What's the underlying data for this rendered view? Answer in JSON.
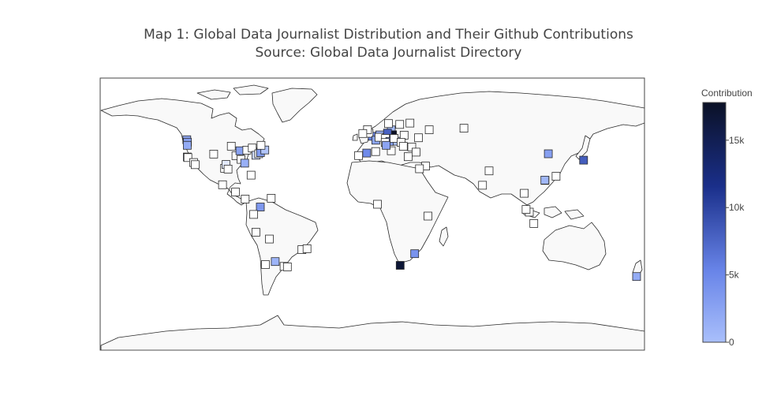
{
  "title": {
    "line1": "Map 1: Global Data Journalist Distribution and Their Github Contributions",
    "line2": "Source: Global Data Journalist Directory"
  },
  "colors": {
    "background": "#ffffff",
    "land": "#f9f9f9",
    "coastline": "#2a2a2a",
    "frame": "#444444",
    "marker_edge": "#2a2a2a",
    "scale_low": "#a9bffb",
    "scale_mid": "#6884e8",
    "scale_high": "#1a2f8a",
    "scale_max": "#0b1126"
  },
  "colorbar": {
    "title": "Contribution",
    "min": 0,
    "max": 17800,
    "ticks": [
      {
        "value": 0,
        "label": "0"
      },
      {
        "value": 5000,
        "label": "5k"
      },
      {
        "value": 10000,
        "label": "10k"
      },
      {
        "value": 15000,
        "label": "15k"
      }
    ]
  },
  "chart_data": {
    "type": "scatter",
    "projection": "equirectangular",
    "title": "Map 1: Global Data Journalist Distribution and Their Github Contributions",
    "subtitle": "Source: Global Data Journalist Directory",
    "marker": "square",
    "color_by": "Contribution",
    "lon_range": [
      -180,
      180
    ],
    "lat_range": [
      -90,
      90
    ],
    "points": [
      {
        "lon": -122.7,
        "lat": 49.2,
        "value": 2600
      },
      {
        "lon": -122.3,
        "lat": 47.6,
        "value": 3200
      },
      {
        "lon": -122.4,
        "lat": 45.5,
        "value": 2400
      },
      {
        "lon": -122.4,
        "lat": 37.8,
        "value": 1500
      },
      {
        "lon": -122.0,
        "lat": 37.4,
        "value": 0
      },
      {
        "lon": -118.2,
        "lat": 34.1,
        "value": 0
      },
      {
        "lon": -117.2,
        "lat": 32.7,
        "value": 0
      },
      {
        "lon": -104.9,
        "lat": 39.7,
        "value": 0
      },
      {
        "lon": -97.7,
        "lat": 30.3,
        "value": 0
      },
      {
        "lon": -96.8,
        "lat": 32.8,
        "value": 300
      },
      {
        "lon": -95.4,
        "lat": 29.8,
        "value": 0
      },
      {
        "lon": -93.3,
        "lat": 44.9,
        "value": 0
      },
      {
        "lon": -90.2,
        "lat": 38.6,
        "value": 0
      },
      {
        "lon": -87.6,
        "lat": 41.9,
        "value": 3100
      },
      {
        "lon": -86.8,
        "lat": 36.2,
        "value": 0
      },
      {
        "lon": -84.4,
        "lat": 33.7,
        "value": 2000
      },
      {
        "lon": -83.0,
        "lat": 42.3,
        "value": 0
      },
      {
        "lon": -79.4,
        "lat": 43.7,
        "value": 0
      },
      {
        "lon": -77.0,
        "lat": 38.9,
        "value": 500
      },
      {
        "lon": -75.2,
        "lat": 39.9,
        "value": 0
      },
      {
        "lon": -74.0,
        "lat": 40.7,
        "value": 3600
      },
      {
        "lon": -71.1,
        "lat": 42.4,
        "value": 800
      },
      {
        "lon": -73.6,
        "lat": 45.5,
        "value": 0
      },
      {
        "lon": -80.2,
        "lat": 25.8,
        "value": 0
      },
      {
        "lon": -99.1,
        "lat": 19.4,
        "value": 0
      },
      {
        "lon": -90.5,
        "lat": 14.6,
        "value": 0
      },
      {
        "lon": -84.1,
        "lat": 9.9,
        "value": 0
      },
      {
        "lon": -74.1,
        "lat": 4.7,
        "value": 3800
      },
      {
        "lon": -66.9,
        "lat": 10.5,
        "value": 0
      },
      {
        "lon": -78.5,
        "lat": -0.2,
        "value": 0
      },
      {
        "lon": -77.0,
        "lat": -12.0,
        "value": 0
      },
      {
        "lon": -68.1,
        "lat": -16.5,
        "value": 0
      },
      {
        "lon": -70.7,
        "lat": -33.4,
        "value": 0
      },
      {
        "lon": -58.4,
        "lat": -34.6,
        "value": 0
      },
      {
        "lon": -46.6,
        "lat": -23.5,
        "value": 0
      },
      {
        "lon": -43.2,
        "lat": -22.9,
        "value": 0
      },
      {
        "lon": -56.2,
        "lat": -34.9,
        "value": 0
      },
      {
        "lon": -64.2,
        "lat": -31.4,
        "value": 1700
      },
      {
        "lon": -0.1,
        "lat": 51.5,
        "value": 5200
      },
      {
        "lon": -2.2,
        "lat": 53.5,
        "value": 0
      },
      {
        "lon": -3.2,
        "lat": 55.9,
        "value": 0
      },
      {
        "lon": -6.3,
        "lat": 53.3,
        "value": 0
      },
      {
        "lon": 2.3,
        "lat": 48.9,
        "value": 2800
      },
      {
        "lon": 4.9,
        "lat": 52.4,
        "value": 1800
      },
      {
        "lon": 4.4,
        "lat": 50.8,
        "value": 0
      },
      {
        "lon": -3.7,
        "lat": 40.4,
        "value": 4800
      },
      {
        "lon": 2.2,
        "lat": 41.4,
        "value": 0
      },
      {
        "lon": -9.1,
        "lat": 38.7,
        "value": 0
      },
      {
        "lon": 12.5,
        "lat": 55.7,
        "value": 1200
      },
      {
        "lon": 10.7,
        "lat": 59.9,
        "value": 0
      },
      {
        "lon": 18.1,
        "lat": 59.3,
        "value": 0
      },
      {
        "lon": 24.9,
        "lat": 60.2,
        "value": 0
      },
      {
        "lon": 13.4,
        "lat": 52.5,
        "value": 17800
      },
      {
        "lon": 10.0,
        "lat": 53.6,
        "value": 7800
      },
      {
        "lon": 8.7,
        "lat": 50.1,
        "value": 0
      },
      {
        "lon": 11.6,
        "lat": 48.1,
        "value": 3500
      },
      {
        "lon": 8.5,
        "lat": 47.4,
        "value": 0
      },
      {
        "lon": 16.4,
        "lat": 48.2,
        "value": 900
      },
      {
        "lon": 14.4,
        "lat": 50.1,
        "value": 0
      },
      {
        "lon": 21.0,
        "lat": 52.2,
        "value": 0
      },
      {
        "lon": 19.0,
        "lat": 47.5,
        "value": 0
      },
      {
        "lon": 12.5,
        "lat": 41.9,
        "value": 0
      },
      {
        "lon": 9.2,
        "lat": 45.5,
        "value": 2900
      },
      {
        "lon": 20.5,
        "lat": 44.8,
        "value": 0
      },
      {
        "lon": 26.1,
        "lat": 44.4,
        "value": 0
      },
      {
        "lon": 23.7,
        "lat": 38.0,
        "value": 0
      },
      {
        "lon": 30.5,
        "lat": 50.5,
        "value": 0
      },
      {
        "lon": 37.6,
        "lat": 55.8,
        "value": 0
      },
      {
        "lon": 28.9,
        "lat": 41.0,
        "value": 0
      },
      {
        "lon": 35.2,
        "lat": 31.8,
        "value": 0
      },
      {
        "lon": 31.2,
        "lat": 30.0,
        "value": 0
      },
      {
        "lon": 60.6,
        "lat": 56.8,
        "value": 0
      },
      {
        "lon": 3.4,
        "lat": 6.5,
        "value": 0
      },
      {
        "lon": 36.8,
        "lat": -1.3,
        "value": 0
      },
      {
        "lon": 28.0,
        "lat": -26.2,
        "value": 4200
      },
      {
        "lon": 18.4,
        "lat": -33.9,
        "value": 16800
      },
      {
        "lon": 77.2,
        "lat": 28.6,
        "value": 0
      },
      {
        "lon": 72.9,
        "lat": 19.1,
        "value": 0
      },
      {
        "lon": 116.4,
        "lat": 39.9,
        "value": 3300
      },
      {
        "lon": 139.7,
        "lat": 35.7,
        "value": 8200
      },
      {
        "lon": 121.5,
        "lat": 25.0,
        "value": 0
      },
      {
        "lon": 114.2,
        "lat": 22.3,
        "value": 0
      },
      {
        "lon": 114.1,
        "lat": 22.5,
        "value": 1500
      },
      {
        "lon": 100.5,
        "lat": 13.8,
        "value": 0
      },
      {
        "lon": 103.8,
        "lat": 1.3,
        "value": 0
      },
      {
        "lon": 101.7,
        "lat": 3.1,
        "value": 0
      },
      {
        "lon": 106.8,
        "lat": -6.2,
        "value": 0
      },
      {
        "lon": 174.8,
        "lat": -41.3,
        "value": 2300
      }
    ]
  }
}
